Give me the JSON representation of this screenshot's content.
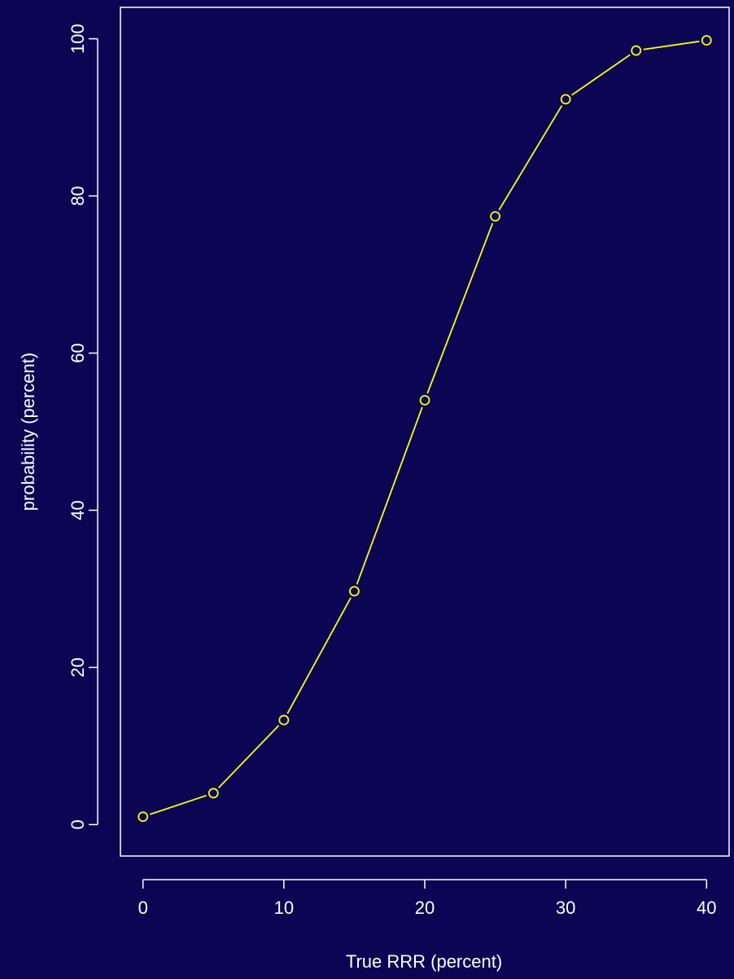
{
  "chart_data": {
    "type": "line",
    "title": "",
    "xlabel": "True RRR (percent)",
    "ylabel": "probability (percent)",
    "xlim": [
      -1.6,
      41.6
    ],
    "ylim": [
      -4,
      104
    ],
    "xticks": [
      0,
      10,
      20,
      30,
      40
    ],
    "yticks": [
      0,
      20,
      40,
      60,
      80,
      100
    ],
    "x_tick_labels": [
      "0",
      "10",
      "20",
      "30",
      "40"
    ],
    "y_tick_labels": [
      "0",
      "20",
      "40",
      "60",
      "80",
      "100"
    ],
    "grid": false,
    "legend": "none",
    "series": [
      {
        "x": [
          0,
          5,
          10,
          15,
          20,
          25,
          30,
          35,
          40
        ],
        "values": [
          1.0,
          4.0,
          13.3,
          29.7,
          54.0,
          77.4,
          92.3,
          98.5,
          99.8
        ],
        "marker": "open-circle",
        "color": "#ffff00"
      }
    ],
    "colors": {
      "background": "#0b0554",
      "axes": "#ffffff",
      "series": "#ffff00"
    }
  }
}
